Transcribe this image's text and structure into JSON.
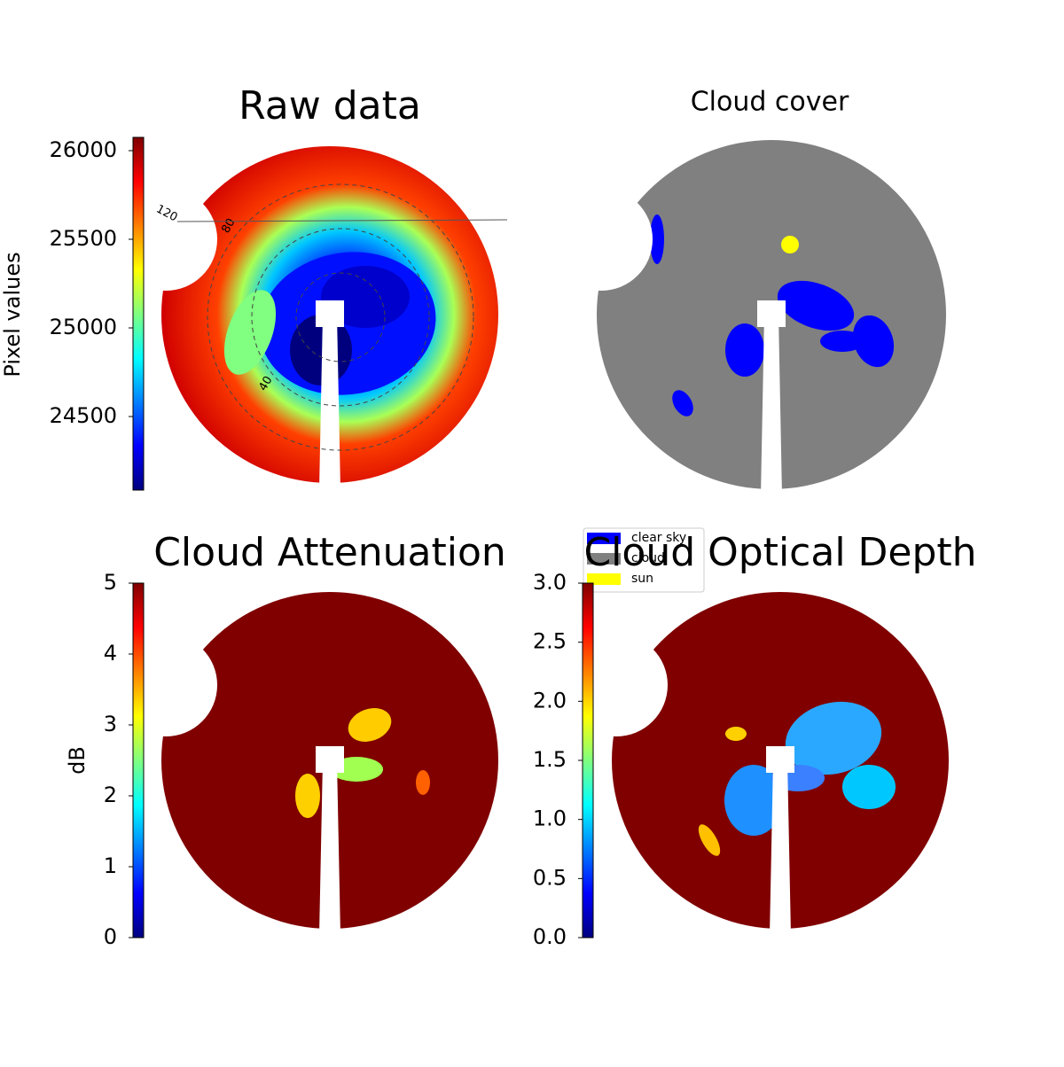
{
  "chart_data": [
    {
      "type": "heatmap",
      "title": "Raw data",
      "colorbar_label": "Pixel values",
      "colormap": "jet",
      "clim": [
        24085,
        26075
      ],
      "cticks": [
        24500,
        25000,
        25500,
        26000
      ],
      "annotations": [
        "120",
        "80",
        "40"
      ]
    },
    {
      "type": "classification",
      "title": "Cloud cover",
      "legend": [
        {
          "name": "clear sky",
          "color": "#0000ff"
        },
        {
          "name": "cloud",
          "color": "#808080"
        },
        {
          "name": "sun",
          "color": "#ffff00"
        }
      ]
    },
    {
      "type": "heatmap",
      "title": "Cloud Attenuation",
      "colorbar_label": "dB",
      "colormap": "jet",
      "clim": [
        0,
        5
      ],
      "cticks": [
        0,
        1,
        2,
        3,
        4,
        5
      ]
    },
    {
      "type": "heatmap",
      "title": "Cloud Optical Depth",
      "colormap": "jet",
      "clim": [
        0,
        3
      ],
      "cticks": [
        {
          "value": 0,
          "label": "0.0"
        },
        0.5,
        {
          "value": 1,
          "label": "1.0"
        },
        1.5,
        {
          "value": 2,
          "label": "2.0"
        },
        2.5,
        {
          "value": 3,
          "label": "3.0"
        }
      ]
    }
  ]
}
